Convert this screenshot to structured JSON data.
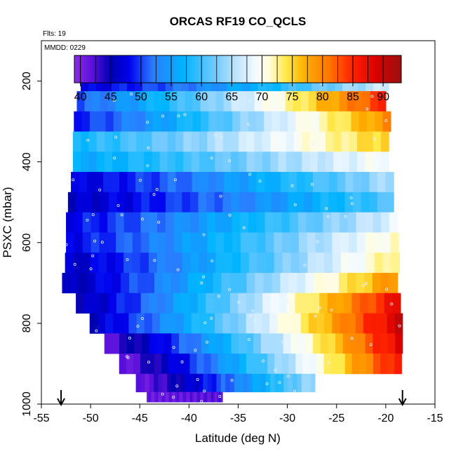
{
  "chart_data": {
    "type": "heatmap",
    "title": "ORCAS RF19 CO_QCLS",
    "annotations": [
      "Flts: 19",
      "MMDD: 0229"
    ],
    "xlabel": "Latitude (deg N)",
    "ylabel": "PSXC (mbar)",
    "xlim": [
      -55,
      -15
    ],
    "ylim": [
      1000,
      100
    ],
    "y_inverted": true,
    "x_ticks": [
      -55,
      -50,
      -45,
      -40,
      -35,
      -30,
      -25,
      -20,
      -15
    ],
    "y_ticks": [
      200,
      400,
      600,
      800,
      1000
    ],
    "grid": false,
    "colorbar": {
      "range": [
        39,
        93
      ],
      "ticks": [
        40,
        45,
        50,
        55,
        60,
        65,
        70,
        75,
        80,
        85,
        90
      ],
      "stops": [
        {
          "v": 39,
          "c": "#8a2be2"
        },
        {
          "v": 42,
          "c": "#5a10dd"
        },
        {
          "v": 45,
          "c": "#0000b0"
        },
        {
          "v": 48,
          "c": "#0000ee"
        },
        {
          "v": 52,
          "c": "#2a7cff"
        },
        {
          "v": 57,
          "c": "#00b4ff"
        },
        {
          "v": 62,
          "c": "#6cc8ff"
        },
        {
          "v": 66,
          "c": "#c4e6ff"
        },
        {
          "v": 69,
          "c": "#f4fbff"
        },
        {
          "v": 71,
          "c": "#fffde0"
        },
        {
          "v": 74,
          "c": "#ffe94a"
        },
        {
          "v": 77,
          "c": "#ffb000"
        },
        {
          "v": 81,
          "c": "#ff7800"
        },
        {
          "v": 85,
          "c": "#ff2000"
        },
        {
          "v": 89,
          "c": "#d80000"
        },
        {
          "v": 93,
          "c": "#9a1010"
        }
      ]
    },
    "rows": [
      {
        "p": 200,
        "x0": -51.0,
        "x1": -19.7,
        "v0": 47,
        "v1": 67
      },
      {
        "p": 250,
        "x0": -51.4,
        "x1": -20.0,
        "v0": 51,
        "v1": 85
      },
      {
        "p": 300,
        "x0": -51.7,
        "x1": -19.5,
        "v0": 49,
        "v1": 80
      },
      {
        "p": 350,
        "x0": -51.8,
        "x1": -19.7,
        "v0": 58,
        "v1": 76
      },
      {
        "p": 400,
        "x0": -51.8,
        "x1": -19.7,
        "v0": 56,
        "v1": 70
      },
      {
        "p": 450,
        "x0": -52.0,
        "x1": -19.2,
        "v0": 47,
        "v1": 65
      },
      {
        "p": 500,
        "x0": -52.3,
        "x1": -19.2,
        "v0": 46,
        "v1": 61
      },
      {
        "p": 550,
        "x0": -52.5,
        "x1": -18.8,
        "v0": 48,
        "v1": 68
      },
      {
        "p": 600,
        "x0": -52.5,
        "x1": -18.7,
        "v0": 48,
        "v1": 72
      },
      {
        "p": 650,
        "x0": -52.6,
        "x1": -18.6,
        "v0": 46,
        "v1": 74
      },
      {
        "p": 700,
        "x0": -52.9,
        "x1": -18.8,
        "v0": 45,
        "v1": 80
      },
      {
        "p": 750,
        "x0": -51.5,
        "x1": -18.5,
        "v0": 45,
        "v1": 88
      },
      {
        "p": 800,
        "x0": -50.1,
        "x1": -18.3,
        "v0": 46,
        "v1": 90
      },
      {
        "p": 850,
        "x0": -48.6,
        "x1": -18.3,
        "v0": 42,
        "v1": 89
      },
      {
        "p": 900,
        "x0": -47.1,
        "x1": -18.4,
        "v0": 41,
        "v1": 87
      },
      {
        "p": 950,
        "x0": -45.4,
        "x1": -27.2,
        "v0": 41,
        "v1": 65
      },
      {
        "p": 990,
        "x0": -44.3,
        "x1": -36.6,
        "v0": 41,
        "v1": 42
      }
    ],
    "arrows_at_x": [
      -53.0,
      -18.3
    ]
  }
}
